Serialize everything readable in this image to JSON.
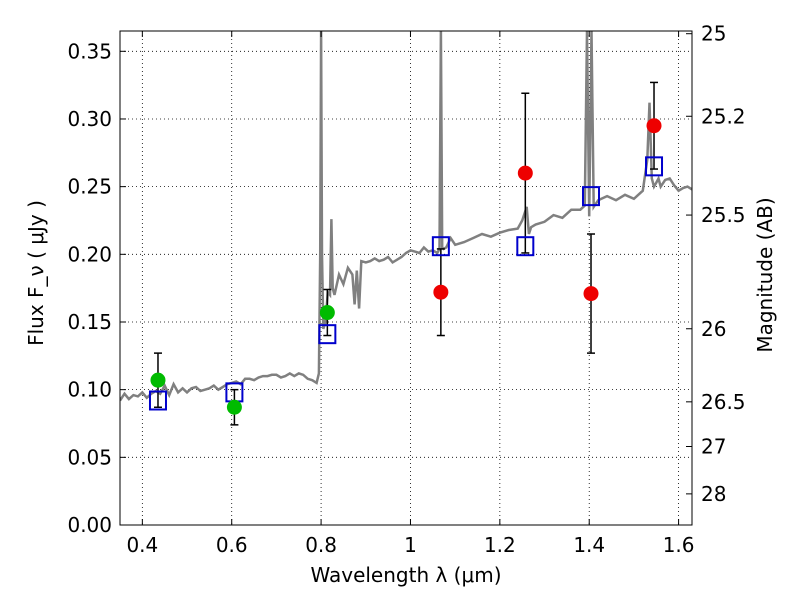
{
  "chart_data": {
    "type": "scatter",
    "xlabel": "Wavelength  λ (μm)",
    "ylabel": "Flux  F_ν  ( μJy )",
    "y2label": "Magnitude (AB)",
    "xlim": [
      0.35,
      1.63
    ],
    "ylim": [
      0.0,
      0.365
    ],
    "grid": true,
    "x_ticks": [
      0.4,
      0.6,
      0.8,
      1.0,
      1.2,
      1.4,
      1.6
    ],
    "x_tick_labels": [
      "0.4",
      "0.6",
      "0.8",
      "1",
      "1.2",
      "1.4",
      "1.6"
    ],
    "y_ticks": [
      0.0,
      0.05,
      0.1,
      0.15,
      0.2,
      0.25,
      0.3,
      0.35
    ],
    "y_tick_labels": [
      "0.00",
      "0.05",
      "0.10",
      "0.15",
      "0.20",
      "0.25",
      "0.30",
      "0.35"
    ],
    "y2_ticks": [
      {
        "label": "25",
        "flux": 0.363
      },
      {
        "label": "25.2",
        "flux": 0.302
      },
      {
        "label": "25.5",
        "flux": 0.229
      },
      {
        "label": "26",
        "flux": 0.145
      },
      {
        "label": "26.5",
        "flux": 0.091
      },
      {
        "label": "27",
        "flux": 0.058
      },
      {
        "label": "28",
        "flux": 0.023
      }
    ],
    "series": [
      {
        "kind": "model-spectrum",
        "color": "#808080",
        "x": [
          0.35,
          0.36,
          0.37,
          0.38,
          0.39,
          0.4,
          0.41,
          0.42,
          0.43,
          0.44,
          0.45,
          0.46,
          0.47,
          0.48,
          0.49,
          0.5,
          0.51,
          0.52,
          0.53,
          0.54,
          0.55,
          0.56,
          0.57,
          0.58,
          0.59,
          0.6,
          0.61,
          0.62,
          0.63,
          0.64,
          0.65,
          0.66,
          0.67,
          0.68,
          0.69,
          0.7,
          0.71,
          0.72,
          0.73,
          0.74,
          0.75,
          0.76,
          0.77,
          0.78,
          0.79,
          0.795,
          0.798,
          0.8,
          0.802,
          0.805,
          0.81,
          0.815,
          0.82,
          0.823,
          0.826,
          0.83,
          0.84,
          0.85,
          0.86,
          0.87,
          0.875,
          0.88,
          0.885,
          0.89,
          0.9,
          0.91,
          0.92,
          0.93,
          0.94,
          0.95,
          0.96,
          0.97,
          0.98,
          0.99,
          1.0,
          1.01,
          1.02,
          1.03,
          1.04,
          1.05,
          1.06,
          1.065,
          1.068,
          1.071,
          1.074,
          1.08,
          1.09,
          1.1,
          1.12,
          1.14,
          1.16,
          1.18,
          1.2,
          1.22,
          1.24,
          1.25,
          1.26,
          1.265,
          1.27,
          1.28,
          1.3,
          1.32,
          1.34,
          1.36,
          1.38,
          1.39,
          1.395,
          1.4,
          1.405,
          1.41,
          1.42,
          1.44,
          1.46,
          1.48,
          1.5,
          1.52,
          1.53,
          1.535,
          1.54,
          1.545,
          1.55,
          1.555,
          1.56,
          1.57,
          1.58,
          1.59,
          1.6,
          1.61,
          1.62,
          1.63
        ],
        "y": [
          0.092,
          0.097,
          0.093,
          0.096,
          0.095,
          0.098,
          0.094,
          0.097,
          0.099,
          0.097,
          0.103,
          0.096,
          0.104,
          0.098,
          0.101,
          0.098,
          0.101,
          0.102,
          0.099,
          0.1,
          0.101,
          0.103,
          0.1,
          0.102,
          0.104,
          0.105,
          0.106,
          0.104,
          0.108,
          0.108,
          0.107,
          0.109,
          0.11,
          0.11,
          0.111,
          0.111,
          0.109,
          0.11,
          0.112,
          0.11,
          0.112,
          0.111,
          0.108,
          0.107,
          0.105,
          0.112,
          0.2,
          0.365,
          0.2,
          0.145,
          0.15,
          0.172,
          0.17,
          0.226,
          0.175,
          0.17,
          0.185,
          0.178,
          0.19,
          0.185,
          0.163,
          0.188,
          0.16,
          0.195,
          0.194,
          0.195,
          0.197,
          0.195,
          0.196,
          0.198,
          0.194,
          0.196,
          0.198,
          0.201,
          0.203,
          0.202,
          0.201,
          0.205,
          0.202,
          0.203,
          0.201,
          0.204,
          0.365,
          0.205,
          0.204,
          0.205,
          0.212,
          0.207,
          0.209,
          0.212,
          0.215,
          0.213,
          0.216,
          0.218,
          0.219,
          0.225,
          0.235,
          0.215,
          0.22,
          0.222,
          0.224,
          0.229,
          0.227,
          0.233,
          0.233,
          0.236,
          0.365,
          0.228,
          0.365,
          0.235,
          0.24,
          0.243,
          0.24,
          0.244,
          0.241,
          0.247,
          0.27,
          0.312,
          0.256,
          0.25,
          0.253,
          0.256,
          0.25,
          0.255,
          0.256,
          0.251,
          0.247,
          0.249,
          0.25,
          0.248
        ]
      },
      {
        "kind": "model-bandpass",
        "marker": "open-square",
        "color": "#0000cc",
        "x": [
          0.435,
          0.606,
          0.814,
          1.068,
          1.257,
          1.404,
          1.545
        ],
        "y": [
          0.092,
          0.098,
          0.141,
          0.206,
          0.206,
          0.243,
          0.265
        ]
      },
      {
        "kind": "observed-green",
        "marker": "filled-circle",
        "color": "#00bb00",
        "x": [
          0.435,
          0.606,
          0.814
        ],
        "y": [
          0.107,
          0.087,
          0.157
        ],
        "err": [
          0.02,
          0.013,
          0.017
        ]
      },
      {
        "kind": "observed-red",
        "marker": "filled-circle",
        "color": "#ee0000",
        "x": [
          1.068,
          1.257,
          1.404,
          1.545
        ],
        "y": [
          0.172,
          0.26,
          0.171,
          0.295
        ],
        "err": [
          0.032,
          0.059,
          0.044,
          0.032
        ]
      }
    ]
  }
}
